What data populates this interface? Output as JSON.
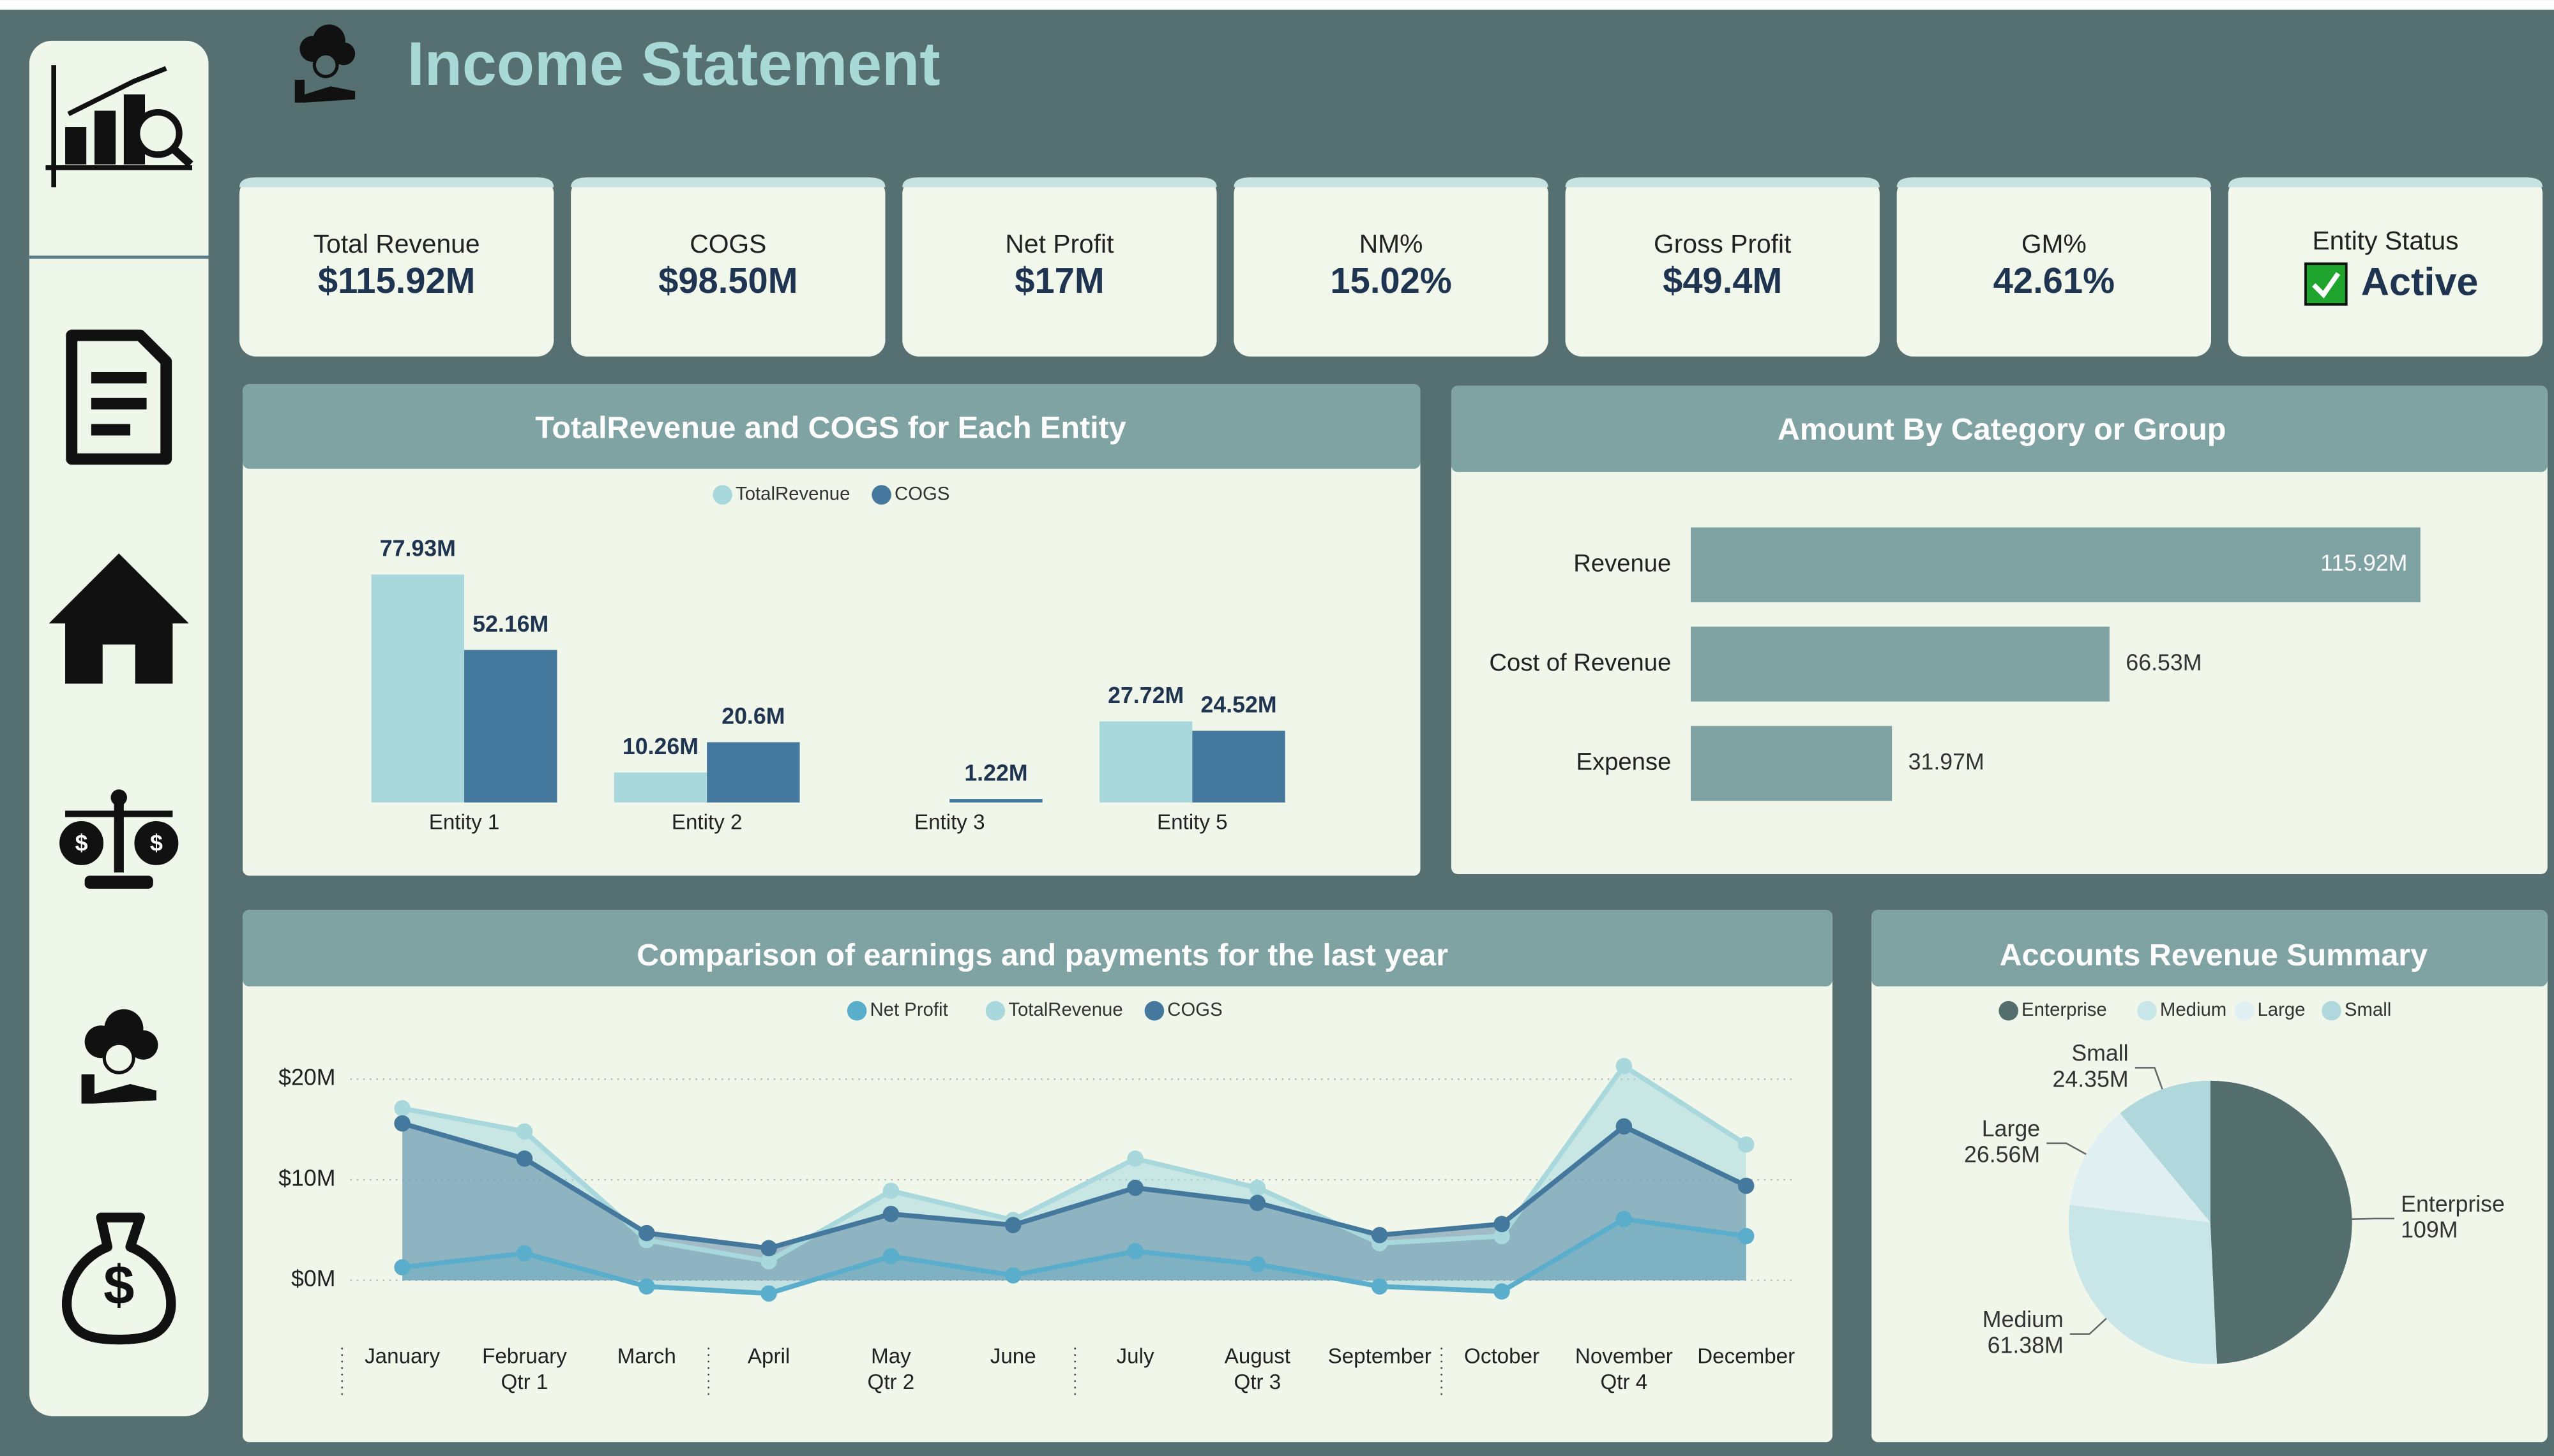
{
  "header": {
    "title": "Income Statement"
  },
  "kpis": [
    {
      "label": "Total Revenue",
      "value": "$115.92M"
    },
    {
      "label": "COGS",
      "value": "$98.50M"
    },
    {
      "label": "Net Profit",
      "value": "$17M"
    },
    {
      "label": "NM%",
      "value": "15.02%"
    },
    {
      "label": "Gross Profit",
      "value": "$49.4M"
    },
    {
      "label": "GM%",
      "value": "42.61%"
    },
    {
      "label": "Entity Status",
      "value": "Active",
      "checked": true
    }
  ],
  "chart_data": [
    {
      "type": "bar",
      "title": "TotalRevenue and COGS for Each Entity",
      "categories": [
        "Entity 1",
        "Entity 2",
        "Entity 3",
        "Entity 5"
      ],
      "series": [
        {
          "name": "TotalRevenue",
          "color": "#a8d8dc",
          "values": [
            77.93,
            10.26,
            null,
            27.72
          ],
          "value_labels": [
            "77.93M",
            "10.26M",
            null,
            "27.72M"
          ]
        },
        {
          "name": "COGS",
          "color": "#44789c",
          "values": [
            52.16,
            20.6,
            1.22,
            24.52
          ],
          "value_labels": [
            "52.16M",
            "20.6M",
            "1.22M",
            "24.52M"
          ]
        }
      ],
      "legend": "top"
    },
    {
      "type": "hbar",
      "title": "Amount By Category or Group",
      "categories": [
        "Revenue",
        "Cost of Revenue",
        "Expense"
      ],
      "values": [
        115.92,
        66.53,
        31.97
      ],
      "value_labels": [
        "115.92M",
        "66.53M",
        "31.97M"
      ],
      "color": "#7fa3a3"
    },
    {
      "type": "area",
      "title": "Comparison of earnings and payments for the last year",
      "categories": [
        "January",
        "February",
        "March",
        "April",
        "May",
        "June",
        "July",
        "August",
        "September",
        "October",
        "November",
        "December"
      ],
      "quarters": [
        "Qtr 1",
        "Qtr 2",
        "Qtr 3",
        "Qtr 4"
      ],
      "series": [
        {
          "name": "Net Profit",
          "color": "#5aaecb",
          "values": [
            1.3,
            2.7,
            -0.6,
            -1.3,
            2.4,
            0.5,
            2.9,
            1.6,
            -0.6,
            -1.1,
            6.1,
            4.4
          ]
        },
        {
          "name": "TotalRevenue",
          "color": "#a8d8dc",
          "values": [
            17.1,
            14.8,
            4.0,
            1.9,
            8.9,
            6.0,
            12.1,
            9.2,
            3.7,
            4.4,
            21.3,
            13.5
          ]
        },
        {
          "name": "COGS",
          "color": "#44789c",
          "values": [
            15.6,
            12.1,
            4.7,
            3.2,
            6.6,
            5.5,
            9.2,
            7.7,
            4.5,
            5.6,
            15.3,
            9.4
          ]
        }
      ],
      "ylim": [
        -2,
        22
      ],
      "yticks": [
        {
          "value": 0,
          "label": "$0M"
        },
        {
          "value": 10,
          "label": "$10M"
        },
        {
          "value": 20,
          "label": "$20M"
        }
      ],
      "grid": true,
      "legend": "top"
    },
    {
      "type": "pie",
      "title": "Accounts Revenue Summary",
      "categories": [
        "Enterprise",
        "Medium",
        "Large",
        "Small"
      ],
      "values": [
        109,
        61.38,
        26.56,
        24.35
      ],
      "value_labels": [
        "109M",
        "61.38M",
        "26.56M",
        "24.35M"
      ],
      "colors": [
        "#546e6e",
        "#c8e6e8",
        "#e0f0f2",
        "#b0d8dc"
      ],
      "legend": "top"
    }
  ]
}
